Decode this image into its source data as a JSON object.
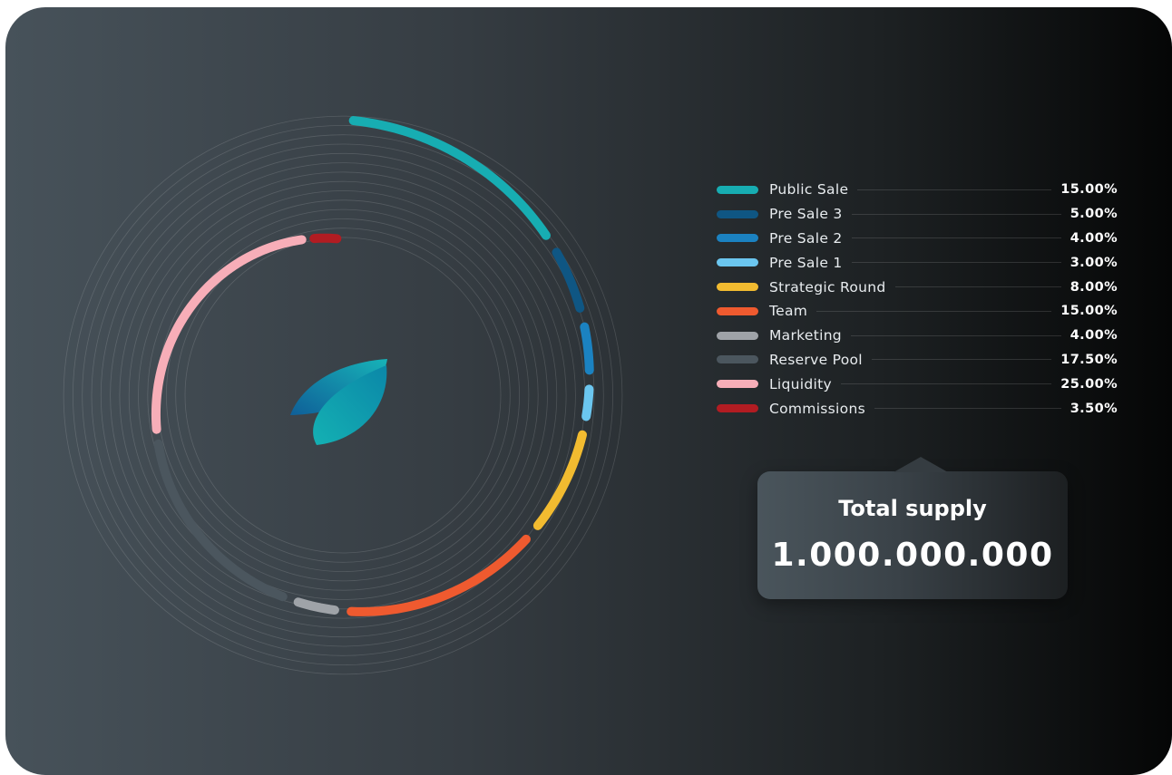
{
  "colors": {
    "public_sale": "#17adb2",
    "pre_sale_3": "#0f5683",
    "pre_sale_2": "#1b82c1",
    "pre_sale_1": "#6bc6ef",
    "strategic_round": "#f2bb30",
    "team": "#ef5a2f",
    "marketing": "#9fa3a8",
    "reserve_pool": "#4b565e",
    "liquidity": "#f7aeb8",
    "commissions": "#b21c22",
    "logo_gradient_start": "#0f6fa7",
    "logo_gradient_end": "#13b6b7"
  },
  "logo": {
    "icon": "leaf-logo-icon"
  },
  "chart_data": {
    "type": "pie",
    "categories": [
      "Public Sale",
      "Pre Sale 3",
      "Pre Sale 2",
      "Pre Sale 1",
      "Strategic Round",
      "Team",
      "Marketing",
      "Reserve Pool",
      "Liquidity",
      "Commissions"
    ],
    "values": [
      15.0,
      5.0,
      4.0,
      3.0,
      8.0,
      15.0,
      4.0,
      17.5,
      25.0,
      3.5
    ],
    "value_labels": [
      "15.00%",
      "5.00%",
      "4.00%",
      "3.00%",
      "8.00%",
      "15.00%",
      "4.00%",
      "17.50%",
      "25.00%",
      "3.50%"
    ],
    "colors": [
      "#17adb2",
      "#0f5683",
      "#1b82c1",
      "#6bc6ef",
      "#f2bb30",
      "#ef5a2f",
      "#9fa3a8",
      "#4b565e",
      "#f7aeb8",
      "#b21c22"
    ],
    "style": "spiral radial arcs",
    "legend": "right"
  },
  "supply": {
    "label": "Total supply",
    "value": "1.000.000.000"
  }
}
